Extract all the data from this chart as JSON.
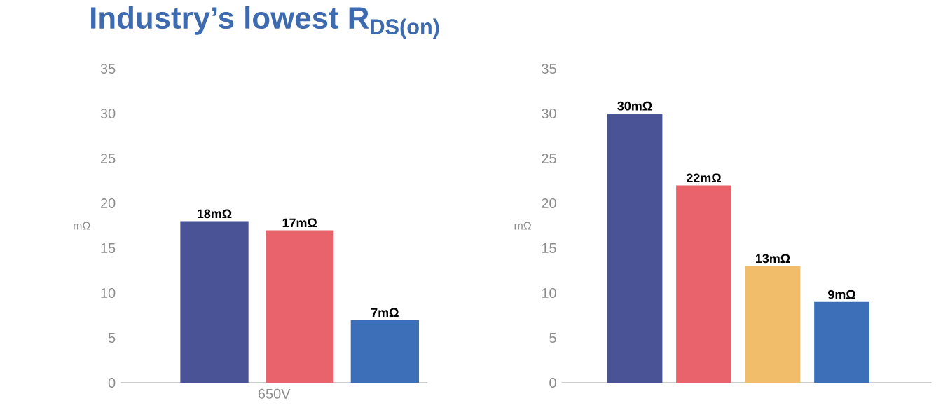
{
  "chart_data": [
    {
      "type": "bar",
      "title": "Industry’s lowest R$_{DS(on)}$",
      "xlabel": "650V",
      "ylabel": "mΩ",
      "categories": [
        null,
        null,
        null
      ],
      "values": [
        18,
        17,
        7
      ],
      "colors": [
        "#4a5396",
        "#e8636b",
        "#3d6fb8"
      ],
      "value_labels": [
        "18mΩ",
        "17mΩ",
        "7mΩ"
      ],
      "ylim": [
        0,
        35
      ],
      "yticks": [
        0,
        5,
        10,
        15,
        20,
        25,
        30,
        35
      ]
    },
    {
      "type": "bar",
      "ylabel": "mΩ",
      "categories": [
        null,
        null,
        null,
        null
      ],
      "values": [
        30,
        22,
        13,
        9
      ],
      "colors": [
        "#4a5396",
        "#e8636b",
        "#f2bd6b",
        "#3d6fb8"
      ],
      "value_labels": [
        "30mΩ",
        "22mΩ",
        "13mΩ",
        "9mΩ"
      ],
      "ylim": [
        0,
        35
      ],
      "yticks": [
        0,
        5,
        10,
        15,
        20,
        25,
        30,
        35
      ]
    }
  ]
}
